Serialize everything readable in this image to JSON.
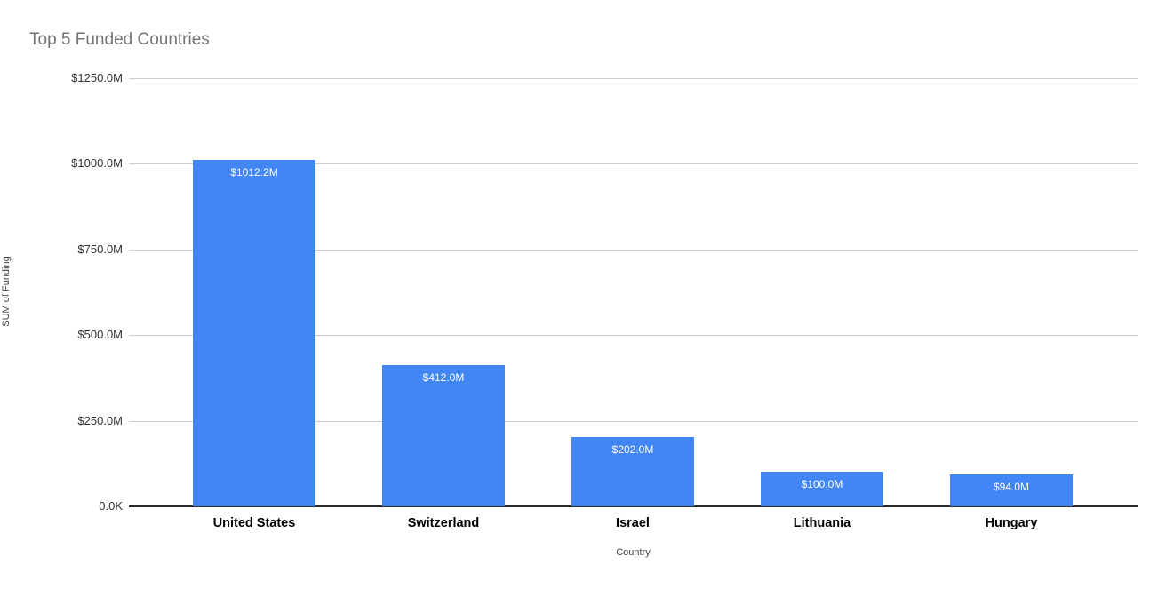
{
  "chart_data": {
    "type": "bar",
    "title": "Top 5 Funded Countries",
    "xlabel": "Country",
    "ylabel": "SUM of Funding",
    "categories": [
      "United States",
      "Switzerland",
      "Israel",
      "Lithuania",
      "Hungary"
    ],
    "values": [
      1012.2,
      412.0,
      202.0,
      100.0,
      94.0
    ],
    "bar_labels": [
      "$1012.2M",
      "$412.0M",
      "$202.0M",
      "$100.0M",
      "$94.0M"
    ],
    "y_ticks": [
      {
        "value": 0,
        "label": "0.0K"
      },
      {
        "value": 250,
        "label": "$250.0M"
      },
      {
        "value": 500,
        "label": "$500.0M"
      },
      {
        "value": 750,
        "label": "$750.0M"
      },
      {
        "value": 1000,
        "label": "$1000.0M"
      },
      {
        "value": 1250,
        "label": "$1250.0M"
      }
    ],
    "ylim": [
      0,
      1250
    ],
    "grid": true,
    "legend_position": "none",
    "colors": {
      "bar": "#4285f4",
      "bar_label": "#ffffff",
      "gridline": "#cdcdcd",
      "axis_line": "#2b2b2b",
      "title": "#757575",
      "tick_label": "#333333",
      "category_label": "#000000",
      "axis_title": "#424242"
    }
  }
}
